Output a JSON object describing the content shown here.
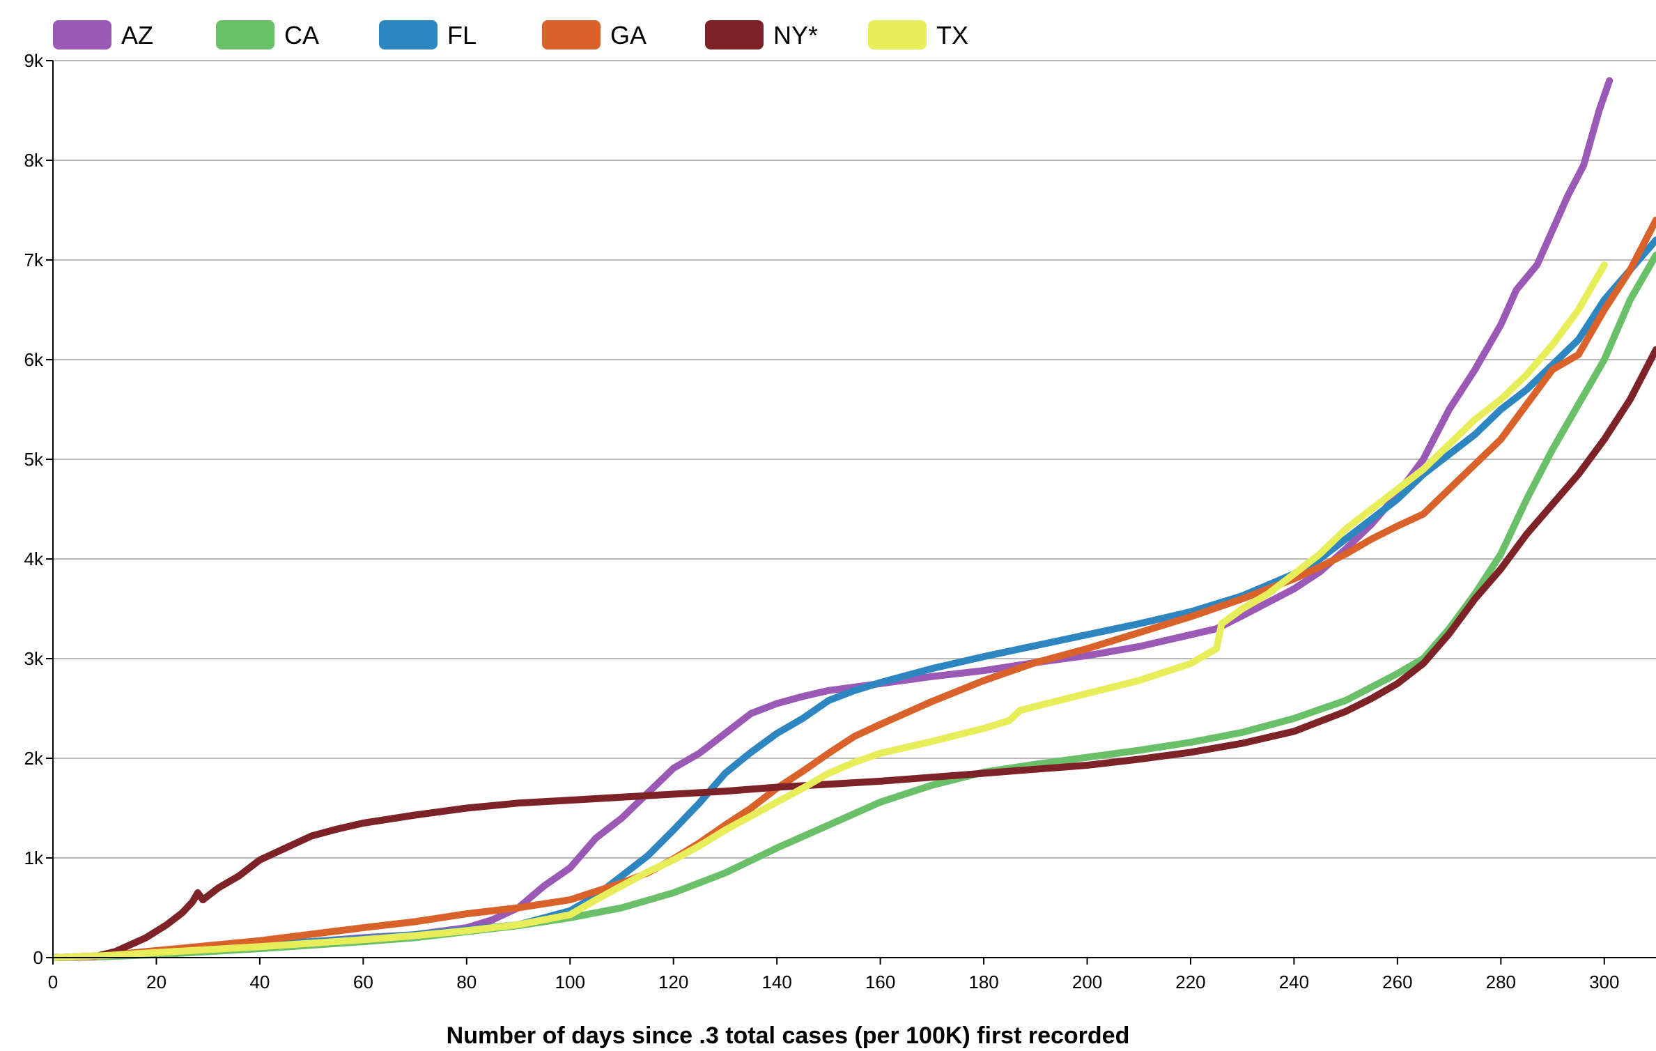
{
  "chart_data": {
    "type": "line",
    "xlabel": "Number of days since .3 total cases (per 100K) first recorded",
    "ylabel": "",
    "xlim": [
      0,
      310
    ],
    "ylim": [
      0,
      9000
    ],
    "x_ticks": [
      0,
      20,
      40,
      60,
      80,
      100,
      120,
      140,
      160,
      180,
      200,
      220,
      240,
      260,
      280,
      300
    ],
    "y_ticks": [
      0,
      1000,
      2000,
      3000,
      4000,
      5000,
      6000,
      7000,
      8000,
      9000
    ],
    "x_tick_labels": [
      "0",
      "20",
      "40",
      "60",
      "80",
      "100",
      "120",
      "140",
      "160",
      "180",
      "200",
      "220",
      "240",
      "260",
      "280",
      "300"
    ],
    "y_tick_labels": [
      "0",
      "1k",
      "2k",
      "3k",
      "4k",
      "5k",
      "6k",
      "7k",
      "8k",
      "9k"
    ],
    "grid": "horizontal",
    "legend_position": "top",
    "series": [
      {
        "name": "AZ",
        "color": "#9b59b6",
        "points": [
          [
            0,
            0
          ],
          [
            10,
            10
          ],
          [
            20,
            40
          ],
          [
            40,
            120
          ],
          [
            60,
            200
          ],
          [
            70,
            230
          ],
          [
            80,
            300
          ],
          [
            85,
            380
          ],
          [
            90,
            500
          ],
          [
            95,
            720
          ],
          [
            100,
            900
          ],
          [
            105,
            1200
          ],
          [
            110,
            1400
          ],
          [
            115,
            1650
          ],
          [
            120,
            1900
          ],
          [
            125,
            2050
          ],
          [
            130,
            2250
          ],
          [
            135,
            2450
          ],
          [
            140,
            2550
          ],
          [
            145,
            2620
          ],
          [
            150,
            2680
          ],
          [
            160,
            2750
          ],
          [
            170,
            2820
          ],
          [
            180,
            2880
          ],
          [
            190,
            2960
          ],
          [
            200,
            3030
          ],
          [
            210,
            3120
          ],
          [
            220,
            3240
          ],
          [
            225,
            3300
          ],
          [
            230,
            3430
          ],
          [
            240,
            3700
          ],
          [
            245,
            3870
          ],
          [
            250,
            4100
          ],
          [
            255,
            4350
          ],
          [
            260,
            4650
          ],
          [
            265,
            5000
          ],
          [
            270,
            5500
          ],
          [
            275,
            5900
          ],
          [
            280,
            6350
          ],
          [
            283,
            6700
          ],
          [
            287,
            6950
          ],
          [
            290,
            7300
          ],
          [
            293,
            7650
          ],
          [
            296,
            7950
          ],
          [
            299,
            8500
          ],
          [
            301,
            8800
          ]
        ]
      },
      {
        "name": "CA",
        "color": "#6abf69",
        "points": [
          [
            0,
            0
          ],
          [
            10,
            10
          ],
          [
            20,
            30
          ],
          [
            40,
            90
          ],
          [
            60,
            160
          ],
          [
            70,
            200
          ],
          [
            80,
            260
          ],
          [
            90,
            320
          ],
          [
            100,
            400
          ],
          [
            110,
            500
          ],
          [
            120,
            650
          ],
          [
            130,
            850
          ],
          [
            140,
            1100
          ],
          [
            150,
            1330
          ],
          [
            160,
            1560
          ],
          [
            170,
            1730
          ],
          [
            180,
            1860
          ],
          [
            190,
            1940
          ],
          [
            200,
            2010
          ],
          [
            210,
            2080
          ],
          [
            220,
            2160
          ],
          [
            230,
            2260
          ],
          [
            240,
            2400
          ],
          [
            250,
            2580
          ],
          [
            260,
            2850
          ],
          [
            265,
            3000
          ],
          [
            270,
            3300
          ],
          [
            275,
            3650
          ],
          [
            280,
            4050
          ],
          [
            285,
            4600
          ],
          [
            290,
            5100
          ],
          [
            295,
            5550
          ],
          [
            300,
            6000
          ],
          [
            305,
            6600
          ],
          [
            310,
            7050
          ]
        ]
      },
      {
        "name": "FL",
        "color": "#2e86c1",
        "points": [
          [
            0,
            0
          ],
          [
            10,
            20
          ],
          [
            20,
            70
          ],
          [
            40,
            130
          ],
          [
            60,
            190
          ],
          [
            70,
            230
          ],
          [
            80,
            280
          ],
          [
            90,
            330
          ],
          [
            100,
            470
          ],
          [
            105,
            620
          ],
          [
            110,
            820
          ],
          [
            115,
            1020
          ],
          [
            120,
            1280
          ],
          [
            125,
            1550
          ],
          [
            130,
            1850
          ],
          [
            135,
            2060
          ],
          [
            140,
            2250
          ],
          [
            145,
            2400
          ],
          [
            150,
            2580
          ],
          [
            155,
            2680
          ],
          [
            160,
            2760
          ],
          [
            170,
            2900
          ],
          [
            180,
            3020
          ],
          [
            190,
            3130
          ],
          [
            200,
            3240
          ],
          [
            210,
            3350
          ],
          [
            220,
            3470
          ],
          [
            230,
            3630
          ],
          [
            240,
            3850
          ],
          [
            245,
            4000
          ],
          [
            250,
            4200
          ],
          [
            255,
            4400
          ],
          [
            260,
            4600
          ],
          [
            265,
            4850
          ],
          [
            270,
            5050
          ],
          [
            275,
            5250
          ],
          [
            280,
            5500
          ],
          [
            285,
            5700
          ],
          [
            290,
            5950
          ],
          [
            295,
            6200
          ],
          [
            300,
            6600
          ],
          [
            305,
            6900
          ],
          [
            310,
            7200
          ]
        ]
      },
      {
        "name": "GA",
        "color": "#d9622b",
        "points": [
          [
            0,
            0
          ],
          [
            10,
            20
          ],
          [
            20,
            70
          ],
          [
            40,
            170
          ],
          [
            60,
            300
          ],
          [
            70,
            360
          ],
          [
            80,
            440
          ],
          [
            90,
            500
          ],
          [
            100,
            580
          ],
          [
            110,
            750
          ],
          [
            115,
            850
          ],
          [
            120,
            990
          ],
          [
            125,
            1150
          ],
          [
            130,
            1330
          ],
          [
            135,
            1500
          ],
          [
            140,
            1700
          ],
          [
            145,
            1870
          ],
          [
            150,
            2050
          ],
          [
            155,
            2220
          ],
          [
            160,
            2340
          ],
          [
            170,
            2570
          ],
          [
            180,
            2780
          ],
          [
            190,
            2960
          ],
          [
            200,
            3100
          ],
          [
            210,
            3260
          ],
          [
            220,
            3420
          ],
          [
            230,
            3600
          ],
          [
            240,
            3800
          ],
          [
            245,
            3920
          ],
          [
            250,
            4050
          ],
          [
            255,
            4200
          ],
          [
            260,
            4330
          ],
          [
            265,
            4450
          ],
          [
            270,
            4700
          ],
          [
            275,
            4950
          ],
          [
            280,
            5200
          ],
          [
            285,
            5550
          ],
          [
            290,
            5900
          ],
          [
            295,
            6050
          ],
          [
            300,
            6500
          ],
          [
            305,
            6900
          ],
          [
            310,
            7400
          ]
        ]
      },
      {
        "name": "NY*",
        "color": "#7d2328",
        "points": [
          [
            0,
            0
          ],
          [
            8,
            10
          ],
          [
            12,
            60
          ],
          [
            18,
            200
          ],
          [
            22,
            330
          ],
          [
            25,
            450
          ],
          [
            27,
            560
          ],
          [
            28,
            650
          ],
          [
            29,
            580
          ],
          [
            32,
            700
          ],
          [
            36,
            820
          ],
          [
            40,
            980
          ],
          [
            45,
            1100
          ],
          [
            50,
            1220
          ],
          [
            55,
            1290
          ],
          [
            60,
            1350
          ],
          [
            70,
            1430
          ],
          [
            80,
            1500
          ],
          [
            90,
            1550
          ],
          [
            100,
            1580
          ],
          [
            110,
            1610
          ],
          [
            120,
            1640
          ],
          [
            130,
            1670
          ],
          [
            140,
            1710
          ],
          [
            150,
            1740
          ],
          [
            160,
            1770
          ],
          [
            170,
            1810
          ],
          [
            180,
            1850
          ],
          [
            190,
            1890
          ],
          [
            200,
            1930
          ],
          [
            210,
            1990
          ],
          [
            220,
            2060
          ],
          [
            230,
            2150
          ],
          [
            240,
            2270
          ],
          [
            250,
            2470
          ],
          [
            255,
            2600
          ],
          [
            260,
            2750
          ],
          [
            265,
            2950
          ],
          [
            270,
            3250
          ],
          [
            275,
            3600
          ],
          [
            280,
            3900
          ],
          [
            285,
            4250
          ],
          [
            290,
            4550
          ],
          [
            295,
            4850
          ],
          [
            300,
            5200
          ],
          [
            305,
            5600
          ],
          [
            310,
            6100
          ]
        ]
      },
      {
        "name": "TX",
        "color": "#e8ee5a",
        "points": [
          [
            0,
            0
          ],
          [
            10,
            20
          ],
          [
            20,
            50
          ],
          [
            40,
            110
          ],
          [
            60,
            180
          ],
          [
            70,
            220
          ],
          [
            80,
            270
          ],
          [
            90,
            330
          ],
          [
            100,
            430
          ],
          [
            105,
            580
          ],
          [
            110,
            720
          ],
          [
            115,
            860
          ],
          [
            120,
            980
          ],
          [
            125,
            1120
          ],
          [
            130,
            1280
          ],
          [
            135,
            1420
          ],
          [
            140,
            1560
          ],
          [
            145,
            1700
          ],
          [
            150,
            1850
          ],
          [
            155,
            1960
          ],
          [
            160,
            2050
          ],
          [
            170,
            2170
          ],
          [
            180,
            2300
          ],
          [
            185,
            2380
          ],
          [
            187,
            2480
          ],
          [
            190,
            2520
          ],
          [
            200,
            2650
          ],
          [
            210,
            2780
          ],
          [
            220,
            2950
          ],
          [
            225,
            3100
          ],
          [
            226,
            3350
          ],
          [
            230,
            3500
          ],
          [
            235,
            3650
          ],
          [
            240,
            3850
          ],
          [
            245,
            4050
          ],
          [
            250,
            4300
          ],
          [
            255,
            4500
          ],
          [
            260,
            4700
          ],
          [
            265,
            4900
          ],
          [
            270,
            5150
          ],
          [
            275,
            5400
          ],
          [
            280,
            5600
          ],
          [
            285,
            5850
          ],
          [
            290,
            6150
          ],
          [
            295,
            6500
          ],
          [
            300,
            6950
          ]
        ]
      }
    ]
  }
}
